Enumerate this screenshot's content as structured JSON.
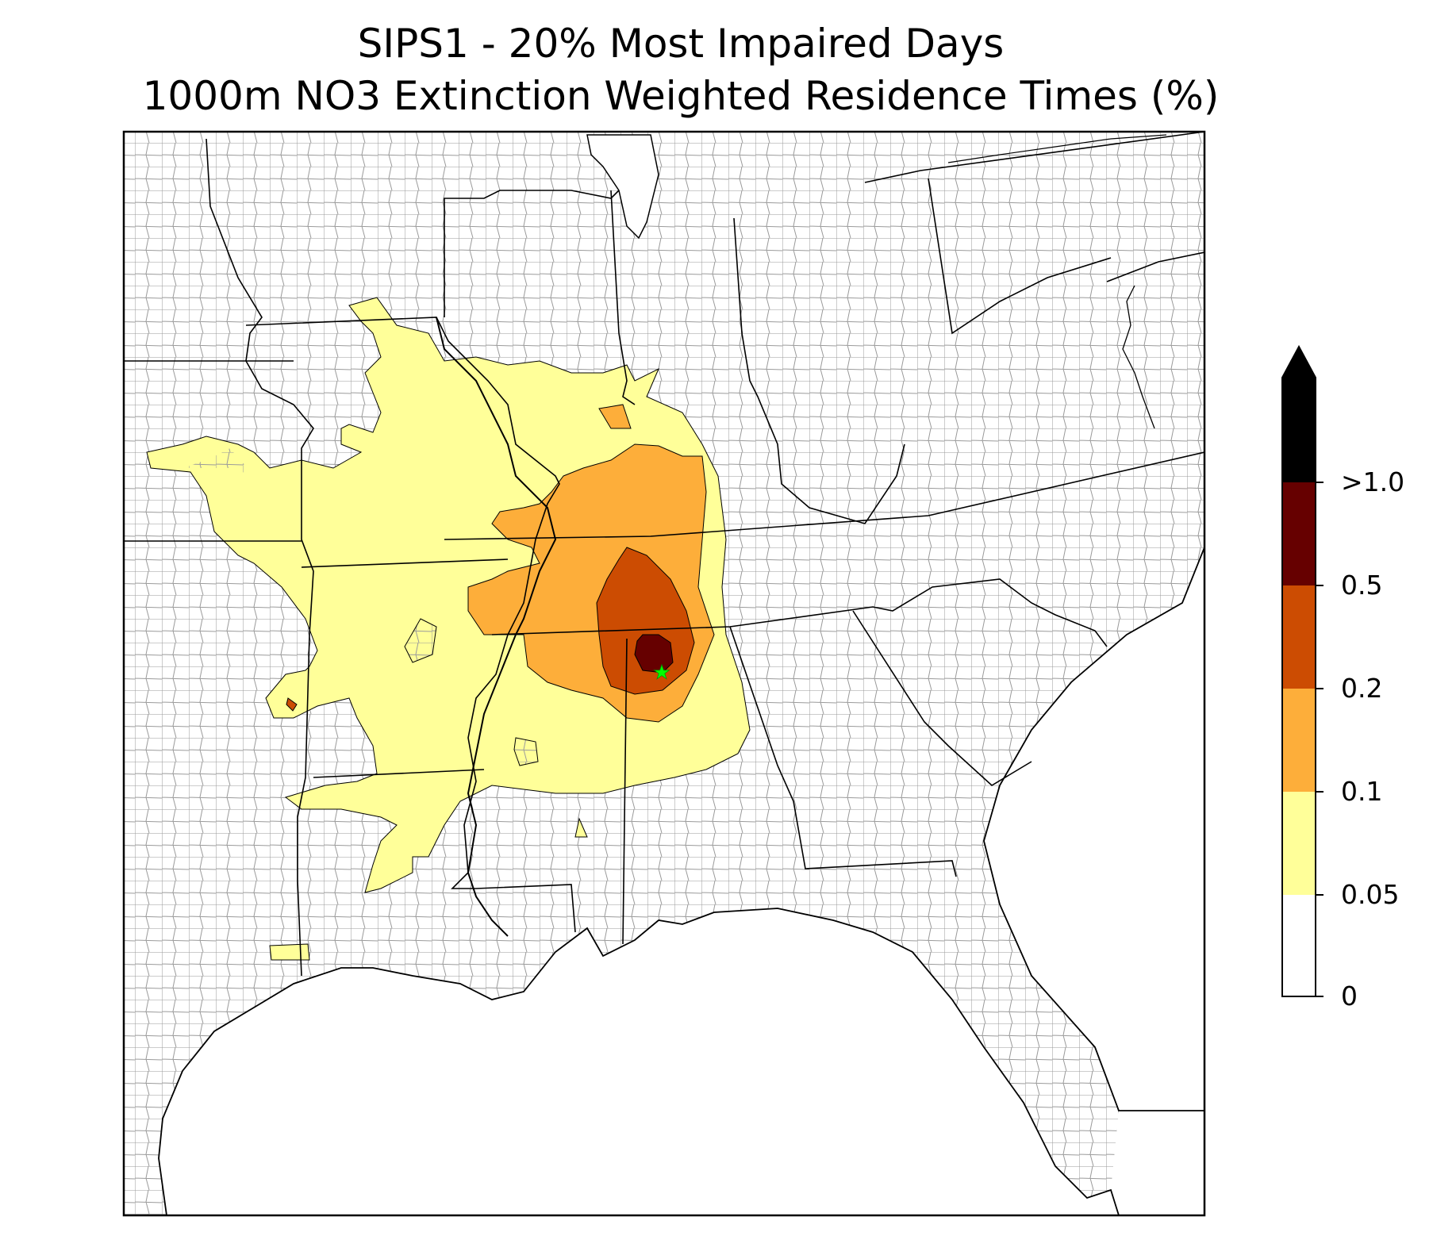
{
  "title": {
    "line1": "SIPS1 - 20% Most Impaired Days",
    "line2": "1000m NO3 Extinction Weighted Residence Times (%)"
  },
  "colorbar": {
    "extend": "max",
    "levels": [
      {
        "label": "0",
        "color": "#ffffff"
      },
      {
        "label": "0.05",
        "color": "#ffff99"
      },
      {
        "label": "0.1",
        "color": "#fdae3a"
      },
      {
        "label": "0.2",
        "color": "#cc4c02"
      },
      {
        "label": "0.5",
        "color": "#660000"
      },
      {
        "label": ">1.0",
        "color": "#000000"
      }
    ]
  },
  "map": {
    "region": "southeastern United States",
    "site_marker": {
      "symbol": "star",
      "color": "#00ff00"
    },
    "county_line_color": "#999999",
    "state_line_color": "#000000",
    "contour_bins": [
      "0.05-0.1",
      "0.1-0.2",
      "0.2-0.5",
      "0.5-1.0"
    ]
  }
}
